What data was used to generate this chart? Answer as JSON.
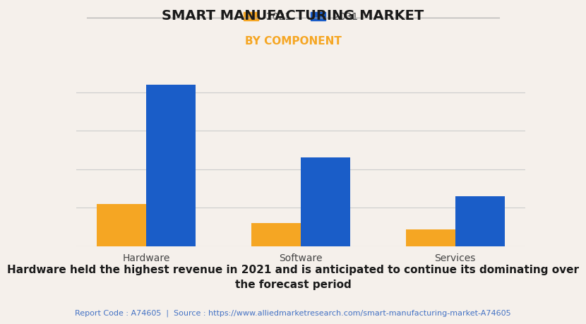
{
  "title": "SMART MANUFACTURING MARKET",
  "subtitle": "BY COMPONENT",
  "categories": [
    "Hardware",
    "Software",
    "Services"
  ],
  "values_2021": [
    55,
    30,
    22
  ],
  "values_2031": [
    210,
    115,
    65
  ],
  "color_2021": "#F5A623",
  "color_2031": "#1A5DC8",
  "legend_labels": [
    "2021",
    "2031"
  ],
  "background_color": "#F5F0EB",
  "subtitle_color": "#F5A623",
  "title_color": "#1a1a1a",
  "bar_width": 0.32,
  "ylim": [
    0,
    230
  ],
  "grid_color": "#cccccc",
  "footnote_text": "Hardware held the highest revenue in 2021 and is anticipated to continue its dominating over\nthe forecast period",
  "report_text": "Report Code : A74605  |  Source : https://www.alliedmarketresearch.com/smart-manufacturing-market-A74605",
  "report_color": "#4472C4",
  "footnote_color": "#1a1a1a",
  "title_fontsize": 14,
  "subtitle_fontsize": 11,
  "footnote_fontsize": 11,
  "report_fontsize": 8
}
